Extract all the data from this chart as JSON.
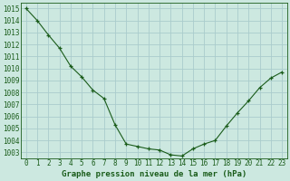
{
  "x_full": [
    0,
    1,
    2,
    3,
    4,
    5,
    6,
    7,
    8,
    9,
    10,
    11,
    12,
    13,
    14,
    15,
    16,
    17,
    18,
    19,
    20,
    21,
    22,
    23
  ],
  "y_full": [
    1015.0,
    1014.0,
    1012.8,
    1011.7,
    1010.2,
    1009.3,
    1008.2,
    1007.5,
    1005.3,
    1003.7,
    1003.5,
    1003.3,
    1003.2,
    1002.8,
    1002.7,
    1003.3,
    1003.7,
    1004.0,
    1005.2,
    1006.3,
    1007.3,
    1008.4,
    1009.2,
    1009.7
  ],
  "line_color": "#1a5c1a",
  "marker": "+",
  "bg_color": "#cce8e0",
  "grid_color": "#aacccc",
  "xlabel": "Graphe pression niveau de la mer (hPa)",
  "ylim_min": 1002.5,
  "ylim_max": 1015.5,
  "yticks": [
    1003,
    1004,
    1005,
    1006,
    1007,
    1008,
    1009,
    1010,
    1011,
    1012,
    1013,
    1014,
    1015
  ],
  "xtick_labels": [
    "0",
    "1",
    "2",
    "3",
    "4",
    "5",
    "6",
    "7",
    "8",
    "9",
    "10",
    "11",
    "12",
    "13",
    "14",
    "15",
    "16",
    "17",
    "18",
    "19",
    "20",
    "21",
    "22",
    "23"
  ],
  "label_color": "#1a5c1a",
  "xlabel_fontsize": 6.5,
  "axis_fontsize": 5.5
}
